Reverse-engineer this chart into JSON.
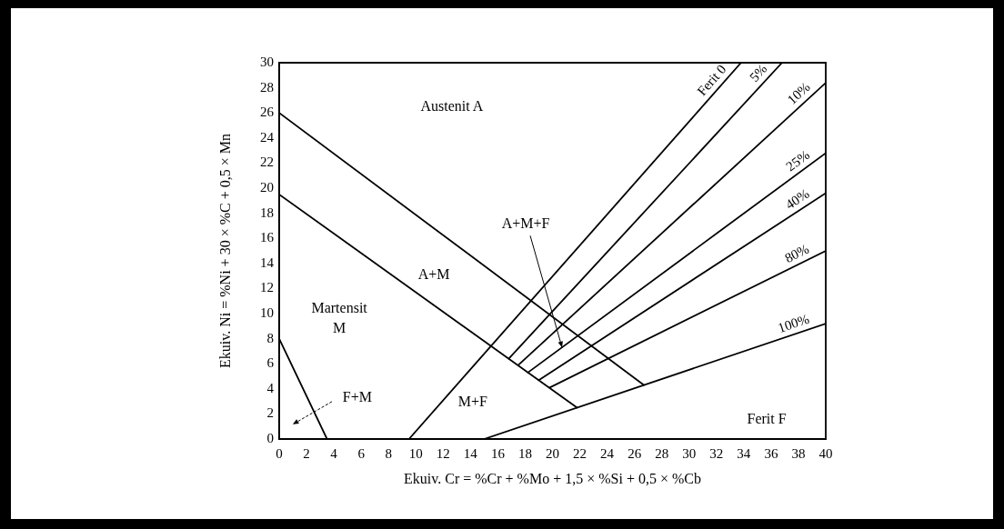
{
  "chart_data": {
    "type": "line",
    "xlabel": "Ekuiv. Cr = %Cr + %Mo + 1,5 × %Si + 0,5 × %Cb",
    "ylabel": "Ekuiv. Ni = %Ni + 30 × %C + 0,5 × Mn",
    "xlim": [
      0,
      40
    ],
    "ylim": [
      0,
      30
    ],
    "xticks": [
      0,
      2,
      4,
      6,
      8,
      10,
      12,
      14,
      16,
      18,
      20,
      22,
      24,
      26,
      28,
      30,
      32,
      34,
      36,
      38,
      40
    ],
    "yticks": [
      0,
      2,
      4,
      6,
      8,
      10,
      12,
      14,
      16,
      18,
      20,
      22,
      24,
      26,
      28,
      30
    ],
    "marker": "none",
    "line_style": "solid",
    "series": [
      {
        "name": "Ferit 0",
        "color": "#000000",
        "x": [
          9.5,
          33.8
        ],
        "values": [
          0,
          30
        ]
      },
      {
        "name": "5%",
        "color": "#000000",
        "x": [
          16.8,
          36.8
        ],
        "values": [
          6.4,
          30
        ]
      },
      {
        "name": "10%",
        "color": "#000000",
        "x": [
          17.5,
          40
        ],
        "values": [
          5.9,
          28.4
        ]
      },
      {
        "name": "25%",
        "color": "#000000",
        "x": [
          18.2,
          40
        ],
        "values": [
          5.3,
          22.8
        ]
      },
      {
        "name": "40%",
        "color": "#000000",
        "x": [
          19.0,
          40
        ],
        "values": [
          4.7,
          19.6
        ]
      },
      {
        "name": "80%",
        "color": "#000000",
        "x": [
          19.8,
          40
        ],
        "values": [
          4.1,
          15.0
        ]
      },
      {
        "name": "100%",
        "color": "#000000",
        "x": [
          15.0,
          40
        ],
        "values": [
          0,
          9.2
        ]
      },
      {
        "color": "#000000",
        "x": [
          0,
          26.7
        ],
        "values": [
          26,
          4.3
        ]
      },
      {
        "color": "#000000",
        "x": [
          0,
          21.8
        ],
        "values": [
          19.5,
          2.5
        ]
      },
      {
        "color": "#000000",
        "x": [
          0,
          3.5
        ],
        "values": [
          8,
          0
        ]
      }
    ],
    "annotations": [
      "Austenit A",
      "A+M",
      {
        "text": "A+M+F",
        "x": 20.7,
        "y": 7.3
      },
      "Martensit M",
      "F+M",
      "M+F",
      "Ferit F"
    ]
  }
}
